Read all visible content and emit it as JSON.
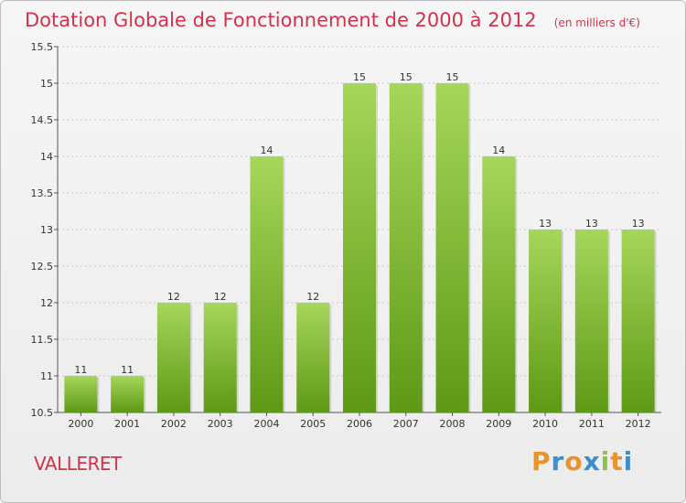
{
  "chart_data": {
    "type": "bar",
    "title": "Dotation Globale de Fonctionnement de 2000 à 2012",
    "subtitle": "(en milliers d'€)",
    "categories": [
      "2000",
      "2001",
      "2002",
      "2003",
      "2004",
      "2005",
      "2006",
      "2007",
      "2008",
      "2009",
      "2010",
      "2011",
      "2012"
    ],
    "values": [
      11,
      11,
      12,
      12,
      14,
      12,
      15,
      15,
      15,
      14,
      13,
      13,
      13
    ],
    "value_labels": [
      "11",
      "11",
      "12",
      "12",
      "14",
      "12",
      "15",
      "15",
      "15",
      "14",
      "13",
      "13",
      "13"
    ],
    "ylim": [
      10.5,
      15.5
    ],
    "yticks": [
      10.5,
      11,
      11.5,
      12,
      12.5,
      13,
      13.5,
      14,
      14.5,
      15,
      15.5
    ],
    "ytick_labels": [
      "10.5",
      "11",
      "11.5",
      "12",
      "12.5",
      "13",
      "13.5",
      "14",
      "14.5",
      "15",
      "15.5"
    ],
    "xlabel": "",
    "ylabel": "",
    "grid": true,
    "bar_color_top": "#a6d65a",
    "bar_color_bottom": "#5e9916"
  },
  "commune": "VALLERET",
  "logo": {
    "letters": [
      "P",
      "r",
      "o",
      "x",
      "i",
      "t",
      "i"
    ],
    "colors": [
      "#e8932b",
      "#3a8fd0",
      "#e8932b",
      "#3a8fd0",
      "#8cc63f",
      "#e8932b",
      "#3a8fd0"
    ]
  }
}
